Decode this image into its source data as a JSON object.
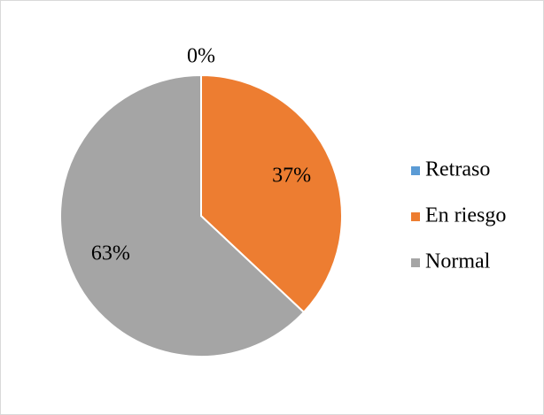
{
  "chart_data": {
    "type": "pie",
    "categories": [
      "Retraso",
      "En riesgo",
      "Normal"
    ],
    "values": [
      0,
      37,
      63
    ],
    "value_labels": [
      "0%",
      "37%",
      "63%"
    ],
    "colors": [
      "#5b9bd5",
      "#ed7d31",
      "#a5a5a5"
    ],
    "legend": "right"
  }
}
